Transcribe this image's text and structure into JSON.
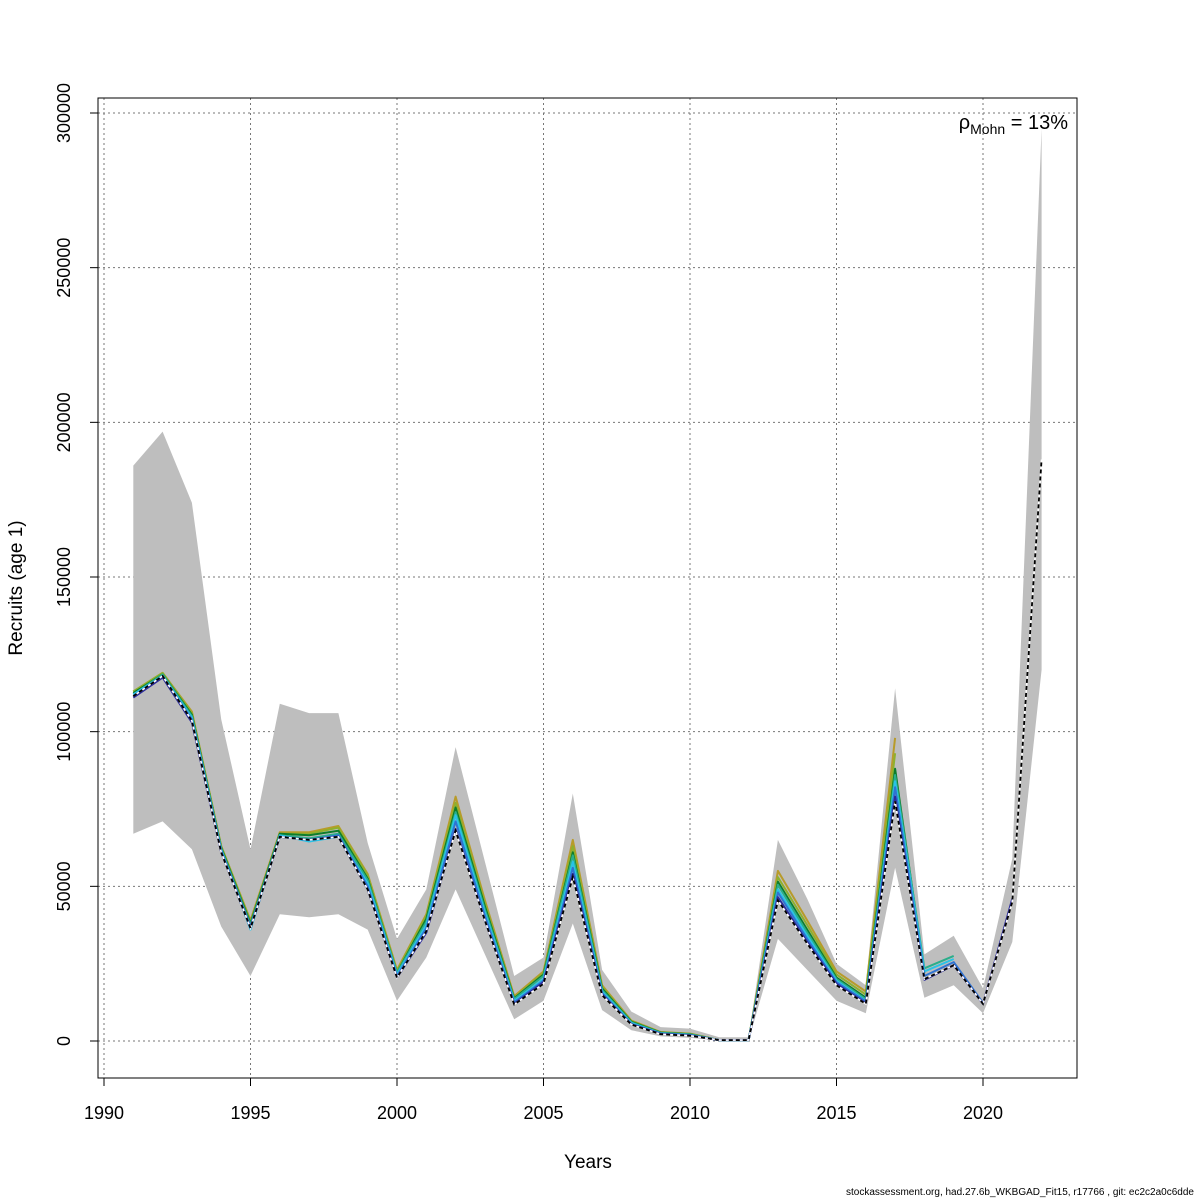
{
  "chart_data": {
    "type": "line",
    "xlabel": "Years",
    "ylabel": "Recruits (age 1)",
    "xlim": [
      1990,
      2023
    ],
    "ylim": [
      0,
      300000
    ],
    "x_ticks": [
      1990,
      1995,
      2000,
      2005,
      2010,
      2015,
      2020
    ],
    "y_ticks": [
      0,
      50000,
      100000,
      150000,
      200000,
      250000,
      300000
    ],
    "grid": true,
    "annotation": {
      "symbol": "ρ",
      "subscript": "Mohn",
      "text": " = 13%"
    },
    "confidence_band": {
      "x": [
        1991,
        1992,
        1993,
        1994,
        1995,
        1996,
        1997,
        1998,
        1999,
        2000,
        2001,
        2002,
        2003,
        2004,
        2005,
        2006,
        2007,
        2008,
        2009,
        2010,
        2011,
        2012,
        2013,
        2014,
        2015,
        2016,
        2017,
        2018,
        2019,
        2020,
        2021,
        2022
      ],
      "lower": [
        67000,
        71000,
        62000,
        37000,
        21000,
        41000,
        40000,
        41000,
        36000,
        13000,
        27000,
        49000,
        28000,
        7000,
        13000,
        38000,
        10000,
        3500,
        1500,
        1000,
        200,
        200,
        33000,
        23000,
        13000,
        9000,
        56000,
        14000,
        18000,
        9000,
        32000,
        120000
      ],
      "upper": [
        186000,
        197000,
        174000,
        104000,
        62000,
        109000,
        106000,
        106000,
        64000,
        33000,
        49000,
        95000,
        58000,
        21000,
        27000,
        80000,
        23000,
        9500,
        4500,
        4000,
        1200,
        1200,
        65000,
        46000,
        25000,
        18000,
        114000,
        28000,
        34000,
        17000,
        59000,
        295000
      ]
    },
    "series": [
      {
        "color": "#000000",
        "dashed": true,
        "x": [
          1991,
          1992,
          1993,
          1994,
          1995,
          1996,
          1997,
          1998,
          1999,
          2000,
          2001,
          2002,
          2003,
          2004,
          2005,
          2006,
          2007,
          2008,
          2009,
          2010,
          2011,
          2012,
          2013,
          2014,
          2015,
          2016,
          2017,
          2018,
          2019,
          2020,
          2021,
          2022
        ],
        "values": [
          111500,
          118000,
          103500,
          61000,
          36500,
          66000,
          65000,
          66000,
          49000,
          20500,
          35500,
          68000,
          39000,
          11800,
          18500,
          53000,
          14800,
          5300,
          2200,
          1700,
          300,
          300,
          45500,
          31500,
          18000,
          12000,
          77500,
          20000,
          24500,
          12000,
          45000,
          188000
        ]
      },
      {
        "color": "#2A2A9A",
        "dashed": false,
        "x": [
          1991,
          1992,
          1993,
          1994,
          1995,
          1996,
          1997,
          1998,
          1999,
          2000,
          2001,
          2002,
          2003,
          2004,
          2005,
          2006,
          2007,
          2008,
          2009,
          2010,
          2011,
          2012,
          2013,
          2014,
          2015,
          2016,
          2017,
          2018,
          2019,
          2020,
          2021
        ],
        "values": [
          111000,
          117500,
          103000,
          61000,
          36500,
          66000,
          65000,
          66000,
          49000,
          20500,
          35000,
          68500,
          39000,
          12000,
          19000,
          54000,
          15000,
          5400,
          2300,
          1800,
          300,
          300,
          46500,
          32000,
          18500,
          12200,
          79000,
          19800,
          24500,
          12000,
          46000
        ]
      },
      {
        "color": "#2F73D2",
        "dashed": false,
        "x": [
          1991,
          1992,
          1993,
          1994,
          1995,
          1996,
          1997,
          1998,
          1999,
          2000,
          2001,
          2002,
          2003,
          2004,
          2005,
          2006,
          2007,
          2008,
          2009,
          2010,
          2011,
          2012,
          2013,
          2014,
          2015,
          2016,
          2017,
          2018,
          2019,
          2020
        ],
        "values": [
          111500,
          118000,
          104000,
          61500,
          37000,
          66000,
          65000,
          66500,
          50000,
          21000,
          36500,
          71000,
          40500,
          12500,
          19500,
          56000,
          15500,
          5500,
          2400,
          1900,
          300,
          300,
          48000,
          33000,
          19000,
          12800,
          82000,
          21000,
          25500,
          12300
        ]
      },
      {
        "color": "#29C3E6",
        "dashed": false,
        "x": [
          1991,
          1992,
          1993,
          1994,
          1995,
          1996,
          1997,
          1998,
          1999,
          2000,
          2001,
          2002,
          2003,
          2004,
          2005,
          2006,
          2007,
          2008,
          2009,
          2010,
          2011,
          2012,
          2013,
          2014,
          2015,
          2016,
          2017,
          2018,
          2019
        ],
        "values": [
          112000,
          118000,
          104500,
          62000,
          36000,
          66500,
          64500,
          66000,
          51000,
          21500,
          37500,
          73000,
          41500,
          13000,
          20000,
          58000,
          16000,
          5800,
          2500,
          2000,
          300,
          300,
          49000,
          34000,
          19500,
          13000,
          84000,
          22500,
          26500
        ]
      },
      {
        "color": "#2BAE8A",
        "dashed": false,
        "x": [
          1991,
          1992,
          1993,
          1994,
          1995,
          1996,
          1997,
          1998,
          1999,
          2000,
          2001,
          2002,
          2003,
          2004,
          2005,
          2006,
          2007,
          2008,
          2009,
          2010,
          2011,
          2012,
          2013,
          2014,
          2015,
          2016,
          2017,
          2018,
          2019
        ],
        "values": [
          112000,
          118500,
          105000,
          62000,
          37500,
          66500,
          65500,
          67000,
          52000,
          22000,
          38500,
          74000,
          42500,
          13500,
          21000,
          60000,
          16500,
          6000,
          2600,
          2100,
          300,
          300,
          50500,
          35000,
          20000,
          13500,
          86000,
          23500,
          27500
        ]
      },
      {
        "color": "#0E7D2C",
        "dashed": false,
        "x": [
          1991,
          1992,
          1993,
          1994,
          1995,
          1996,
          1997,
          1998,
          1999,
          2000,
          2001,
          2002,
          2003,
          2004,
          2005,
          2006,
          2007,
          2008,
          2009,
          2010,
          2011,
          2012,
          2013,
          2014,
          2015,
          2016,
          2017,
          2018
        ],
        "values": [
          112500,
          118500,
          105500,
          62500,
          38000,
          67000,
          66500,
          68000,
          52500,
          22000,
          39500,
          75500,
          43500,
          13800,
          21500,
          61000,
          17000,
          6200,
          2700,
          2200,
          300,
          300,
          51500,
          36000,
          20500,
          14000,
          88000,
          22000
        ]
      },
      {
        "color": "#8FB02C",
        "dashed": false,
        "x": [
          1991,
          1992,
          1993,
          1994,
          1995,
          1996,
          1997,
          1998,
          1999,
          2000,
          2001,
          2002,
          2003,
          2004,
          2005,
          2006,
          2007,
          2008,
          2009,
          2010,
          2011,
          2012,
          2013,
          2014,
          2015,
          2016,
          2017
        ],
        "values": [
          113000,
          119000,
          106000,
          63000,
          38500,
          67000,
          67000,
          69000,
          53500,
          22500,
          40500,
          77000,
          44500,
          14000,
          22000,
          63000,
          17500,
          6400,
          2800,
          2300,
          300,
          300,
          53000,
          37500,
          21500,
          15000,
          93000
        ]
      },
      {
        "color": "#B89B2A",
        "dashed": false,
        "x": [
          1991,
          1992,
          1993,
          1994,
          1995,
          1996,
          1997,
          1998,
          1999,
          2000,
          2001,
          2002,
          2003,
          2004,
          2005,
          2006,
          2007,
          2008,
          2009,
          2010,
          2011,
          2012,
          2013,
          2014,
          2015,
          2016,
          2017
        ],
        "values": [
          113000,
          119000,
          106500,
          63000,
          39000,
          67500,
          67500,
          69500,
          54000,
          23000,
          41000,
          79000,
          45500,
          14500,
          22500,
          65000,
          18000,
          6600,
          2900,
          2400,
          300,
          300,
          55000,
          39000,
          22500,
          16000,
          98000
        ]
      }
    ]
  },
  "footer": "stockassessment.org, had.27.6b_WKBGAD_Fit15, r17766 , git: ec2c2a0c6dde"
}
